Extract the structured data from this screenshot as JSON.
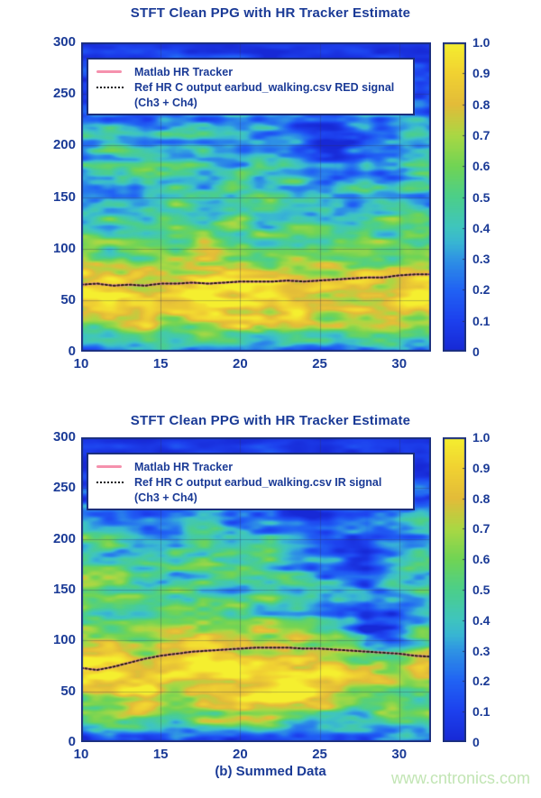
{
  "page": {
    "caption": "(b) Summed Data",
    "watermark": "www.cntronics.com"
  },
  "colors": {
    "axis_text": "#1a3a96",
    "axis_border": "#1b2f7d",
    "tracker_pink": "#f591ad",
    "tracker_dark": "#221a12",
    "watermark_green": "#c2e5b4",
    "colormap": [
      [
        0.0,
        "#1729d6"
      ],
      [
        0.1,
        "#1d41ee"
      ],
      [
        0.2,
        "#2163f4"
      ],
      [
        0.3,
        "#2f94e4"
      ],
      [
        0.35,
        "#38b5d4"
      ],
      [
        0.4,
        "#3fc5bf"
      ],
      [
        0.5,
        "#4ccf8a"
      ],
      [
        0.6,
        "#71d455"
      ],
      [
        0.7,
        "#aad844"
      ],
      [
        0.8,
        "#e3bc39"
      ],
      [
        0.9,
        "#f1d232"
      ],
      [
        1.0,
        "#f5ef2f"
      ]
    ]
  },
  "chart_data": [
    {
      "type": "heatmap",
      "title": "STFT Clean PPG with HR Tracker Estimate",
      "xlabel": "",
      "ylabel": "",
      "x_range": [
        10,
        32
      ],
      "y_range": [
        0,
        300
      ],
      "x_ticks": [
        "10",
        "15",
        "20",
        "25",
        "30"
      ],
      "x_tick_values": [
        10,
        15,
        20,
        25,
        30
      ],
      "y_ticks": [
        "0",
        "50",
        "100",
        "150",
        "200",
        "250",
        "300"
      ],
      "y_tick_values": [
        0,
        50,
        100,
        150,
        200,
        250,
        300
      ],
      "grid": true,
      "legend_position": "top-left",
      "colorbar": {
        "range": [
          0,
          1
        ],
        "tick_labels": [
          "1.0",
          "0.9",
          "0.8",
          "0.7",
          "0.6",
          "0.5",
          "0.4",
          "0.3",
          "0.2",
          "0.1",
          "0"
        ],
        "tick_values": [
          1.0,
          0.9,
          0.8,
          0.7,
          0.6,
          0.5,
          0.4,
          0.3,
          0.2,
          0.1,
          0
        ]
      },
      "legend": [
        {
          "label": "Matlab HR Tracker",
          "style": "pink-solid"
        },
        {
          "label": "Ref HR C output earbud_walking.csv RED signal",
          "label2": "(Ch3 + Ch4)",
          "style": "black-dotted"
        }
      ],
      "grid_x": [
        10,
        12,
        14,
        16,
        18,
        20,
        22,
        24,
        26,
        28,
        30,
        32
      ],
      "grid_y_top_to_bottom": [
        300,
        275,
        250,
        225,
        200,
        175,
        150,
        125,
        100,
        75,
        50,
        25,
        0
      ],
      "intensity": [
        [
          0.04,
          0.04,
          0.04,
          0.04,
          0.04,
          0.04,
          0.04,
          0.04,
          0.04,
          0.04,
          0.04,
          0.04
        ],
        [
          0.1,
          0.12,
          0.1,
          0.14,
          0.1,
          0.12,
          0.15,
          0.1,
          0.08,
          0.1,
          0.16,
          0.1
        ],
        [
          0.14,
          0.1,
          0.16,
          0.12,
          0.1,
          0.14,
          0.1,
          0.12,
          0.08,
          0.1,
          0.14,
          0.12
        ],
        [
          0.3,
          0.35,
          0.25,
          0.3,
          0.35,
          0.3,
          0.22,
          0.12,
          0.1,
          0.28,
          0.38,
          0.22
        ],
        [
          0.35,
          0.42,
          0.3,
          0.45,
          0.38,
          0.3,
          0.28,
          0.15,
          0.12,
          0.32,
          0.3,
          0.4
        ],
        [
          0.42,
          0.35,
          0.48,
          0.4,
          0.32,
          0.45,
          0.42,
          0.3,
          0.22,
          0.38,
          0.26,
          0.44
        ],
        [
          0.45,
          0.28,
          0.45,
          0.52,
          0.45,
          0.4,
          0.46,
          0.38,
          0.32,
          0.42,
          0.46,
          0.32
        ],
        [
          0.48,
          0.52,
          0.42,
          0.55,
          0.48,
          0.52,
          0.45,
          0.42,
          0.38,
          0.46,
          0.52,
          0.46
        ],
        [
          0.62,
          0.55,
          0.58,
          0.52,
          0.62,
          0.55,
          0.5,
          0.48,
          0.52,
          0.58,
          0.5,
          0.62
        ],
        [
          0.8,
          0.85,
          0.78,
          0.82,
          0.86,
          0.8,
          0.78,
          0.72,
          0.7,
          0.76,
          0.82,
          0.86
        ],
        [
          0.92,
          0.96,
          0.9,
          0.96,
          1.0,
          0.94,
          0.92,
          0.96,
          0.9,
          0.86,
          0.96,
          0.92
        ],
        [
          0.62,
          0.72,
          0.78,
          0.66,
          0.72,
          0.78,
          0.72,
          0.66,
          0.6,
          0.56,
          0.66,
          0.72
        ],
        [
          0.15,
          0.22,
          0.15,
          0.28,
          0.2,
          0.15,
          0.32,
          0.22,
          0.15,
          0.2,
          0.26,
          0.15
        ]
      ],
      "tracker": {
        "x": [
          10,
          11,
          12,
          13,
          14,
          15,
          16,
          17,
          18,
          19,
          20,
          21,
          22,
          23,
          24,
          25,
          26,
          27,
          28,
          29,
          30,
          31,
          32
        ],
        "y": [
          65,
          66,
          64,
          65,
          64,
          66,
          66,
          67,
          66,
          67,
          68,
          68,
          68,
          69,
          68,
          69,
          70,
          71,
          72,
          72,
          74,
          75,
          75
        ]
      }
    },
    {
      "type": "heatmap",
      "title": "STFT Clean PPG with HR Tracker Estimate",
      "xlabel": "",
      "ylabel": "",
      "x_range": [
        10,
        32
      ],
      "y_range": [
        0,
        300
      ],
      "x_ticks": [
        "10",
        "15",
        "20",
        "25",
        "30"
      ],
      "x_tick_values": [
        10,
        15,
        20,
        25,
        30
      ],
      "y_ticks": [
        "0",
        "50",
        "100",
        "150",
        "200",
        "250",
        "300"
      ],
      "y_tick_values": [
        0,
        50,
        100,
        150,
        200,
        250,
        300
      ],
      "grid": true,
      "legend_position": "top-left",
      "colorbar": {
        "range": [
          0,
          1
        ],
        "tick_labels": [
          "1.0",
          "0.9",
          "0.8",
          "0.7",
          "0.6",
          "0.5",
          "0.4",
          "0.3",
          "0.2",
          "0.1",
          "0"
        ],
        "tick_values": [
          1.0,
          0.9,
          0.8,
          0.7,
          0.6,
          0.5,
          0.4,
          0.3,
          0.2,
          0.1,
          0
        ]
      },
      "legend": [
        {
          "label": "Matlab HR Tracker",
          "style": "pink-solid"
        },
        {
          "label": "Ref HR C output earbud_walking.csv IR signal",
          "label2": "(Ch3 + Ch4)",
          "style": "black-dotted"
        }
      ],
      "grid_x": [
        10,
        12,
        14,
        16,
        18,
        20,
        22,
        24,
        26,
        28,
        30,
        32
      ],
      "grid_y_top_to_bottom": [
        300,
        275,
        250,
        225,
        200,
        175,
        150,
        125,
        100,
        75,
        50,
        25,
        0
      ],
      "intensity": [
        [
          0.04,
          0.04,
          0.04,
          0.04,
          0.04,
          0.04,
          0.04,
          0.04,
          0.04,
          0.04,
          0.04,
          0.04
        ],
        [
          0.08,
          0.1,
          0.08,
          0.12,
          0.08,
          0.1,
          0.12,
          0.08,
          0.1,
          0.12,
          0.08,
          0.08
        ],
        [
          0.12,
          0.1,
          0.14,
          0.1,
          0.12,
          0.1,
          0.1,
          0.14,
          0.1,
          0.1,
          0.14,
          0.1
        ],
        [
          0.38,
          0.32,
          0.28,
          0.34,
          0.3,
          0.24,
          0.3,
          0.18,
          0.14,
          0.1,
          0.28,
          0.34
        ],
        [
          0.55,
          0.42,
          0.38,
          0.34,
          0.44,
          0.4,
          0.34,
          0.28,
          0.2,
          0.14,
          0.34,
          0.4
        ],
        [
          0.5,
          0.46,
          0.52,
          0.4,
          0.46,
          0.5,
          0.4,
          0.34,
          0.3,
          0.24,
          0.4,
          0.34
        ],
        [
          0.62,
          0.48,
          0.44,
          0.5,
          0.44,
          0.4,
          0.5,
          0.44,
          0.34,
          0.18,
          0.32,
          0.44
        ],
        [
          0.58,
          0.62,
          0.5,
          0.56,
          0.5,
          0.55,
          0.5,
          0.46,
          0.4,
          0.1,
          0.16,
          0.4
        ],
        [
          0.78,
          0.7,
          0.64,
          0.7,
          0.76,
          0.7,
          0.76,
          0.7,
          0.64,
          0.16,
          0.3,
          0.55
        ],
        [
          0.9,
          0.95,
          0.85,
          0.9,
          0.95,
          0.9,
          0.96,
          0.9,
          0.85,
          0.76,
          0.7,
          0.8
        ],
        [
          0.78,
          0.85,
          0.95,
          0.9,
          0.85,
          0.95,
          1.0,
          0.95,
          0.85,
          0.74,
          0.68,
          0.64
        ],
        [
          0.4,
          0.52,
          0.6,
          0.55,
          0.65,
          0.72,
          0.76,
          0.65,
          0.55,
          0.45,
          0.52,
          0.55
        ],
        [
          0.08,
          0.14,
          0.1,
          0.18,
          0.14,
          0.1,
          0.14,
          0.1,
          0.12,
          0.08,
          0.14,
          0.1
        ]
      ],
      "tracker": {
        "x": [
          10,
          11,
          12,
          13,
          14,
          15,
          16,
          17,
          18,
          19,
          20,
          21,
          22,
          23,
          24,
          25,
          26,
          27,
          28,
          29,
          30,
          31,
          32
        ],
        "y": [
          73,
          71,
          74,
          78,
          82,
          85,
          87,
          89,
          90,
          91,
          92,
          93,
          93,
          93,
          92,
          92,
          91,
          90,
          89,
          88,
          87,
          85,
          84
        ]
      }
    }
  ]
}
